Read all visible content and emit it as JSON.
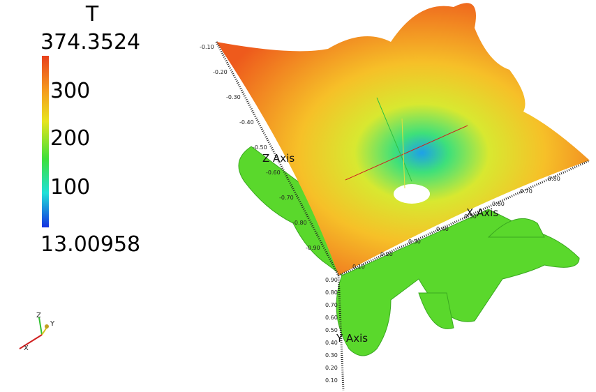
{
  "legend": {
    "title": "T",
    "max": "374.3524",
    "ticks": [
      "300",
      "200",
      "100"
    ],
    "min": "13.00958"
  },
  "axes": {
    "z_label": "Z Axis",
    "x_label": "X Axis",
    "y_label": "Y Axis",
    "z_ticks": [
      "-0.10",
      "-0.20",
      "-0.30",
      "-0.40",
      "-0.50",
      "-0.60",
      "-0.70",
      "-0.80",
      "-0.90"
    ],
    "y_ticks": [
      "0.90",
      "0.80",
      "0.70",
      "0.60",
      "0.50",
      "0.40",
      "0.30",
      "0.20",
      "0.10"
    ],
    "x_ticks": [
      "0.10",
      "0.20",
      "0.30",
      "0.40",
      "0.50",
      "0.60",
      "0.70",
      "0.80"
    ]
  },
  "orientation": {
    "z": "Z",
    "y": "Y",
    "x": "X"
  }
}
